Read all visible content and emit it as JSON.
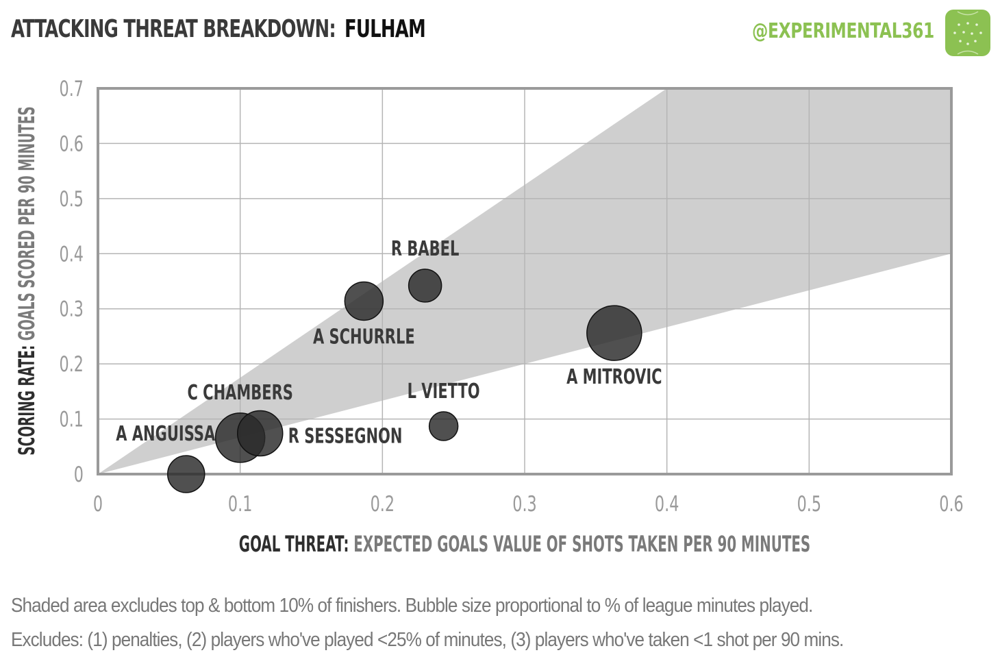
{
  "header": {
    "title_prefix": "ATTACKING THREAT BREAKDOWN:",
    "team": "FULHAM",
    "handle": "@EXPERIMENTAL361"
  },
  "chart_data": {
    "type": "scatter",
    "x_axis": {
      "label_bold": "GOAL THREAT:",
      "label_rest": "EXPECTED GOALS VALUE OF SHOTS TAKEN PER 90 MINUTES",
      "range": [
        0,
        0.6
      ],
      "ticks": [
        "0",
        "0.1",
        "0.2",
        "0.3",
        "0.4",
        "0.5",
        "0.6"
      ]
    },
    "y_axis": {
      "label_bold": "SCORING RATE:",
      "label_rest": "GOALS SCORED PER 90 MINUTES",
      "range": [
        0,
        0.7
      ],
      "ticks": [
        "0",
        "0.1",
        "0.2",
        "0.3",
        "0.4",
        "0.5",
        "0.6",
        "0.7"
      ]
    },
    "grid": true,
    "band": {
      "description": "Shaded area excludes top & bottom 10% of finishers",
      "lower_slope": 0.667,
      "upper_slope": 1.75
    },
    "points": [
      {
        "name": "R BABEL",
        "x": 0.23,
        "y": 0.342,
        "size": 24,
        "label_pos": "above"
      },
      {
        "name": "A SCHURRLE",
        "x": 0.187,
        "y": 0.314,
        "size": 28,
        "label_pos": "below"
      },
      {
        "name": "A MITROVIC",
        "x": 0.363,
        "y": 0.256,
        "size": 40,
        "label_pos": "below"
      },
      {
        "name": "L VIETTO",
        "x": 0.243,
        "y": 0.087,
        "size": 21,
        "label_pos": "above"
      },
      {
        "name": "C CHAMBERS",
        "x": 0.1,
        "y": 0.066,
        "size": 36,
        "label_pos": "above"
      },
      {
        "name": "R SESSEGNON",
        "x": 0.114,
        "y": 0.074,
        "size": 33,
        "label_pos": "right"
      },
      {
        "name": "A ANGUISSA",
        "x": 0.062,
        "y": 0.0,
        "size": 27,
        "label_pos": "above-left"
      }
    ]
  },
  "footer": {
    "note1": "Shaded area excludes top & bottom  10% of finishers. Bubble size proportional to % of league minutes played.",
    "note2": "Excludes: (1) penalties, (2) players who've played <25% of minutes, (3) players who've taken <1 shot per 90 mins."
  }
}
